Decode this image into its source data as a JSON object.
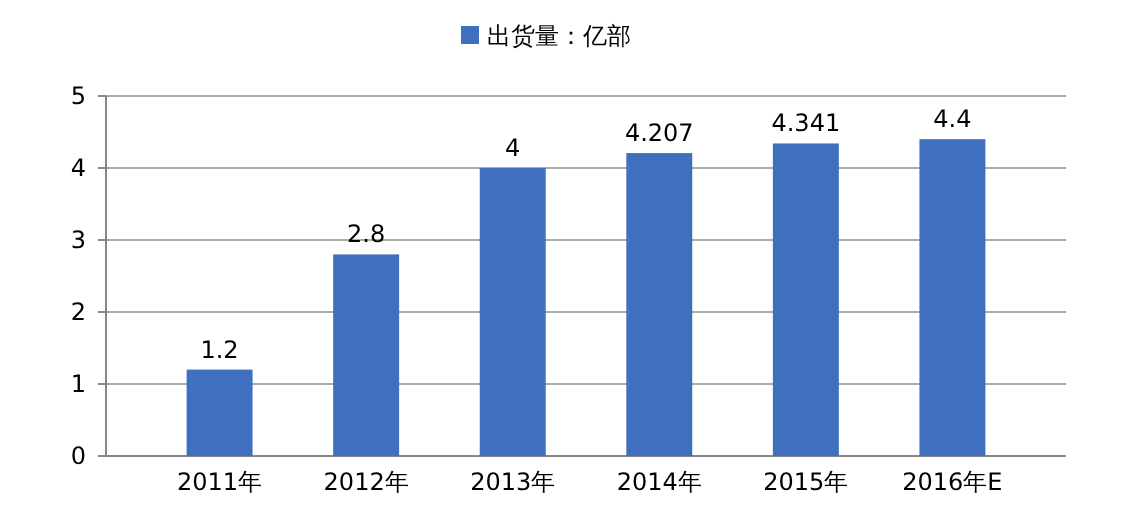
{
  "chart_data": {
    "type": "bar",
    "categories": [
      "2011年",
      "2012年",
      "2013年",
      "2014年",
      "2015年",
      "2016年E"
    ],
    "series": [
      {
        "name": "出货量：亿部",
        "color": "#3f6fbf",
        "values": [
          1.2,
          2.8,
          4,
          4.207,
          4.341,
          4.4
        ]
      }
    ],
    "ylim": [
      0,
      5
    ],
    "yticks": [
      0,
      1,
      2,
      3,
      4,
      5
    ],
    "grid": "y",
    "legend": "top",
    "data_labels": true
  }
}
